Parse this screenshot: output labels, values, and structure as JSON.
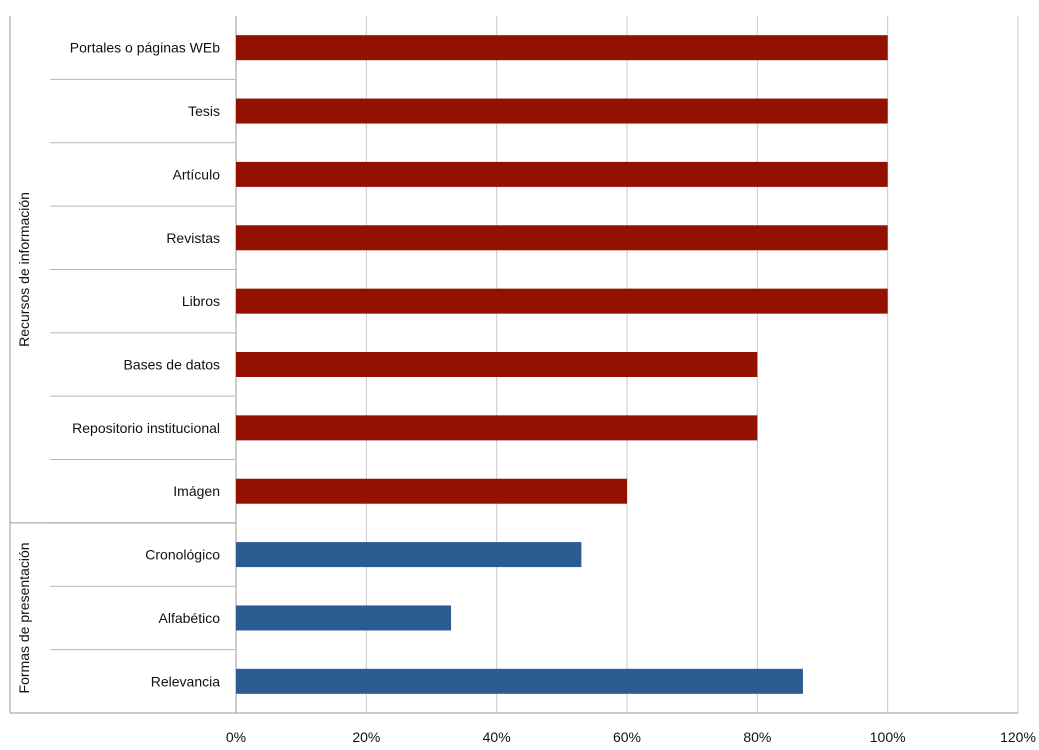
{
  "chart_data": {
    "type": "bar",
    "orientation": "horizontal",
    "title": "",
    "xlabel": "",
    "ylabel": "",
    "xlim": [
      0,
      120
    ],
    "x_ticks": [
      0,
      20,
      40,
      60,
      80,
      100,
      120
    ],
    "tick_suffix": "%",
    "grid": true,
    "legend": "none",
    "groups": [
      {
        "name": "Recursos de información",
        "color": "#931100",
        "categories": [
          "Portales o páginas WEb",
          "Tesis",
          "Artículo",
          "Revistas",
          "Libros",
          "Bases de datos",
          "Repositorio institucional",
          "Imágen"
        ],
        "values": [
          100,
          100,
          100,
          100,
          100,
          80,
          80,
          60
        ]
      },
      {
        "name": "Formas de presentación",
        "color": "#2A5C92",
        "categories": [
          "Cronológico",
          "Alfabético",
          "Relevancia"
        ],
        "values": [
          53,
          33,
          87
        ]
      }
    ]
  }
}
